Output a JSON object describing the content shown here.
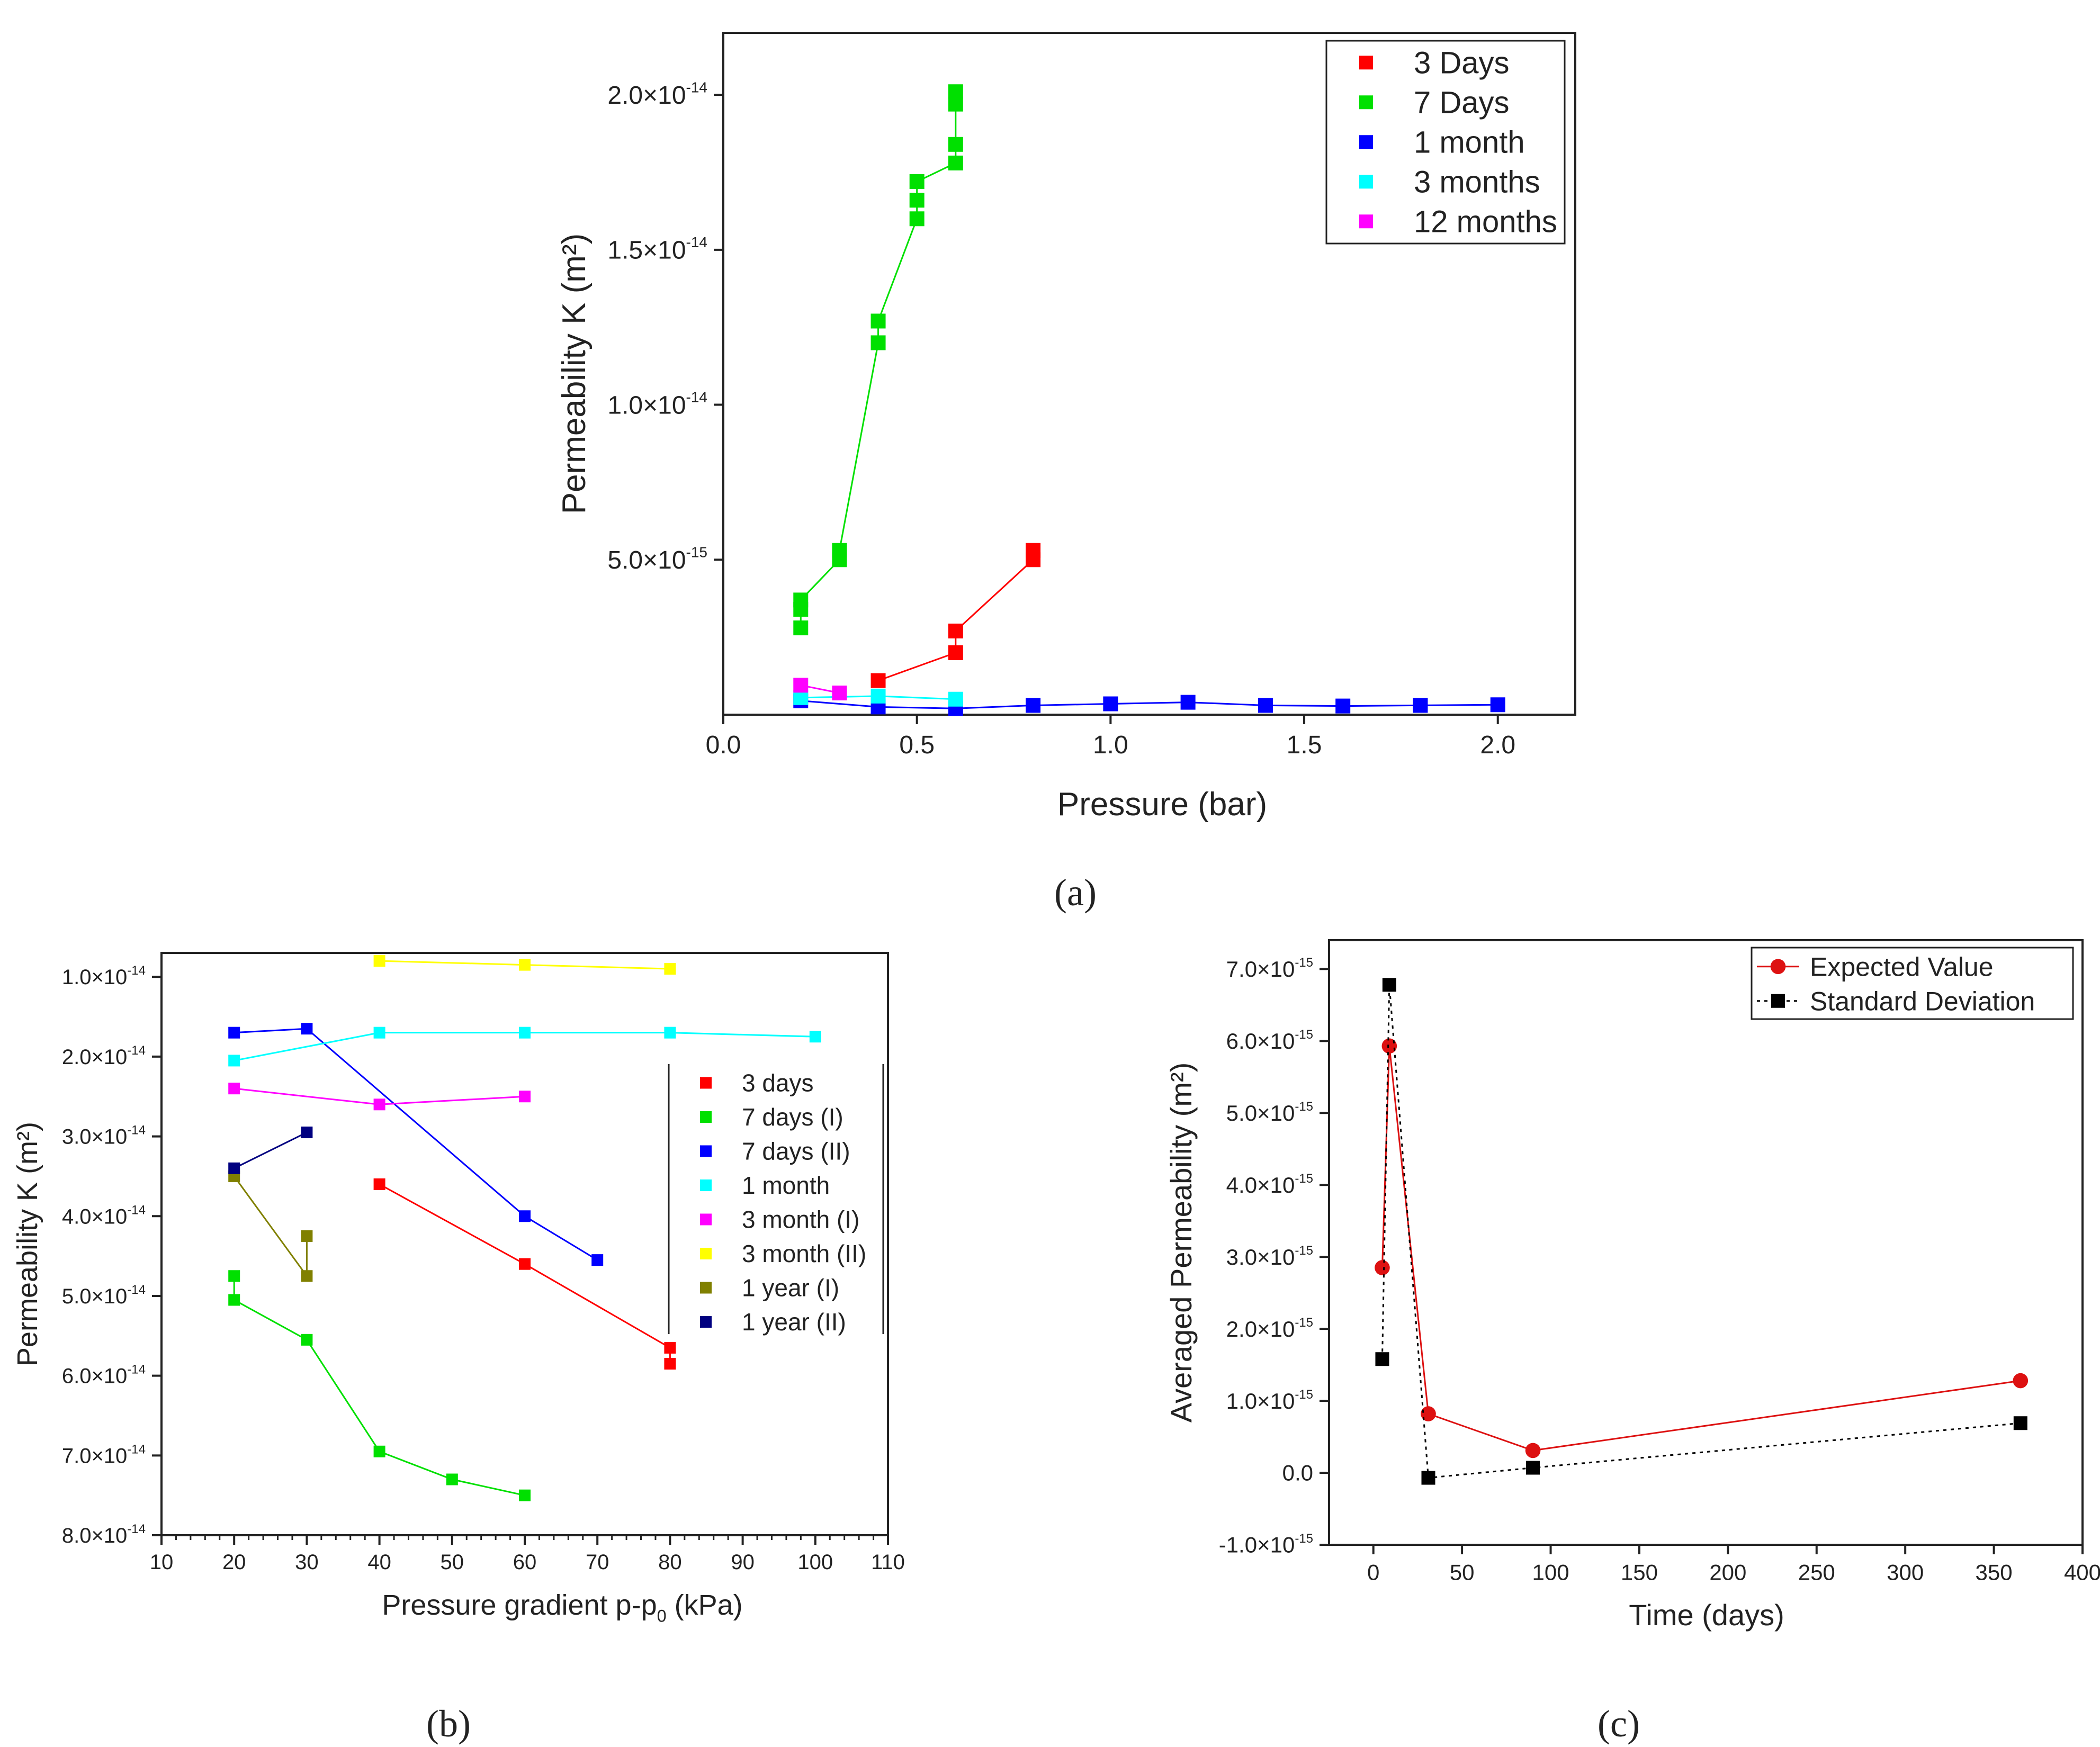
{
  "chart_data": [
    {
      "id": "a",
      "panel_label": "(a)",
      "type": "scatter",
      "xlabel": "Pressure (bar)",
      "ylabel": "Permeability K (m²)",
      "xlim": [
        0,
        2.2
      ],
      "ylim": [
        0,
        2.2e-14
      ],
      "x_ticks": [
        0,
        0.5,
        1.0,
        1.5,
        2.0
      ],
      "x_tick_labels": [
        "0.0",
        "0.5",
        "1.0",
        "1.5",
        "2.0"
      ],
      "y_ticks": [
        5e-15,
        1e-14,
        1.5e-14,
        2e-14
      ],
      "y_tick_mantissas": [
        "5.0×10",
        "1.0×10",
        "1.5×10",
        "2.0×10"
      ],
      "y_tick_exponents": [
        "-15",
        "-14",
        "-14",
        "-14"
      ],
      "legend_position": "top-right",
      "series": [
        {
          "name": "3 Days",
          "color": "#ff0000",
          "line": "solid",
          "x": [
            0.4,
            0.6,
            0.6,
            0.8,
            0.8
          ],
          "y": [
            1.1e-15,
            2e-15,
            2.7e-15,
            5e-15,
            5.3e-15
          ]
        },
        {
          "name": "7 Days",
          "color": "#00e000",
          "line": "solid",
          "x": [
            0.2,
            0.2,
            0.2,
            0.3,
            0.3,
            0.4,
            0.4,
            0.5,
            0.5,
            0.5,
            0.6,
            0.6,
            0.6,
            0.6
          ],
          "y": [
            2.8e-15,
            3.4e-15,
            3.7e-15,
            5e-15,
            5.3e-15,
            1.2e-14,
            1.27e-14,
            1.6e-14,
            1.66e-14,
            1.72e-14,
            1.78e-14,
            1.84e-14,
            1.97e-14,
            2.01e-14
          ]
        },
        {
          "name": "1 month",
          "color": "#0000ff",
          "line": "solid",
          "x": [
            0.2,
            0.4,
            0.6,
            0.8,
            1.0,
            1.2,
            1.4,
            1.6,
            1.8,
            2.0
          ],
          "y": [
            4.5e-16,
            2.5e-16,
            2e-16,
            3e-16,
            3.5e-16,
            4e-16,
            3e-16,
            2.8e-16,
            3e-16,
            3.2e-16
          ]
        },
        {
          "name": "3 months",
          "color": "#00ffff",
          "line": "solid",
          "x": [
            0.2,
            0.4,
            0.6
          ],
          "y": [
            5.5e-16,
            6e-16,
            5e-16
          ]
        },
        {
          "name": "12 months",
          "color": "#ff00ff",
          "line": "solid",
          "x": [
            0.2,
            0.3
          ],
          "y": [
            9.5e-16,
            7e-16
          ]
        }
      ]
    },
    {
      "id": "b",
      "panel_label": "(b)",
      "type": "scatter",
      "xlabel_main": "Pressure gradient p-p",
      "xlabel_sub": "0",
      "xlabel_tail": " (kPa)",
      "ylabel": "Permeability K (m²)",
      "y_inverted": true,
      "xlim": [
        10,
        110
      ],
      "ylim": [
        8e-14,
        7e-15
      ],
      "x_ticks": [
        10,
        20,
        30,
        40,
        50,
        60,
        70,
        80,
        90,
        100,
        110
      ],
      "x_tick_labels": [
        "10",
        "20",
        "30",
        "40",
        "50",
        "60",
        "70",
        "80",
        "90",
        "100",
        "110"
      ],
      "y_ticks": [
        1e-14,
        2e-14,
        3e-14,
        4e-14,
        5e-14,
        6e-14,
        7e-14,
        8e-14
      ],
      "y_tick_mantissas": [
        "1.0×10",
        "2.0×10",
        "3.0×10",
        "4.0×10",
        "5.0×10",
        "6.0×10",
        "7.0×10",
        "8.0×10"
      ],
      "y_tick_exponents": [
        "-14",
        "-14",
        "-14",
        "-14",
        "-14",
        "-14",
        "-14",
        "-14"
      ],
      "legend_position": "center-right",
      "series": [
        {
          "name": "3 days",
          "color": "#ff0000",
          "x": [
            40,
            60,
            80,
            80
          ],
          "y": [
            3.6e-14,
            4.6e-14,
            5.65e-14,
            5.85e-14
          ]
        },
        {
          "name": "7 days (I)",
          "color": "#00e000",
          "x": [
            20,
            20,
            30,
            40,
            50,
            60
          ],
          "y": [
            4.75e-14,
            5.05e-14,
            5.55e-14,
            6.95e-14,
            7.3e-14,
            7.5e-14
          ]
        },
        {
          "name": "7 days (II)",
          "color": "#0000ff",
          "x": [
            20,
            30,
            60,
            70
          ],
          "y": [
            1.7e-14,
            1.65e-14,
            4e-14,
            4.55e-14
          ]
        },
        {
          "name": "1 month",
          "color": "#00ffff",
          "x": [
            20,
            40,
            60,
            80,
            100
          ],
          "y": [
            2.05e-14,
            1.7e-14,
            1.7e-14,
            1.7e-14,
            1.75e-14
          ]
        },
        {
          "name": "3 month (I)",
          "color": "#ff00ff",
          "x": [
            20,
            40,
            60
          ],
          "y": [
            2.4e-14,
            2.6e-14,
            2.5e-14
          ]
        },
        {
          "name": "3 month (II)",
          "color": "#ffff00",
          "x": [
            40,
            60,
            80
          ],
          "y": [
            8e-15,
            8.5e-15,
            9e-15
          ]
        },
        {
          "name": "1 year (I)",
          "color": "#808000",
          "x": [
            20,
            30,
            30
          ],
          "y": [
            3.5e-14,
            4.75e-14,
            4.25e-14
          ]
        },
        {
          "name": "1 year (II)",
          "color": "#000080",
          "x": [
            20,
            30
          ],
          "y": [
            3.4e-14,
            2.95e-14
          ]
        }
      ]
    },
    {
      "id": "c",
      "panel_label": "(c)",
      "type": "line",
      "xlabel": "Time (days)",
      "ylabel": "Averaged Permeability (m²)",
      "xlim": [
        -25,
        400
      ],
      "ylim": [
        -1e-15,
        7.4e-15
      ],
      "x_ticks": [
        0,
        50,
        100,
        150,
        200,
        250,
        300,
        350,
        400
      ],
      "x_tick_labels": [
        "0",
        "50",
        "100",
        "150",
        "200",
        "250",
        "300",
        "350",
        "400"
      ],
      "y_ticks": [
        -1e-15,
        0,
        1e-15,
        2e-15,
        3e-15,
        4e-15,
        5e-15,
        6e-15,
        7e-15
      ],
      "y_tick_mantissas": [
        "-1.0×10",
        "0.0",
        "1.0×10",
        "2.0×10",
        "3.0×10",
        "4.0×10",
        "5.0×10",
        "6.0×10",
        "7.0×10"
      ],
      "y_tick_exponents": [
        "-15",
        "",
        "-15",
        "-15",
        "-15",
        "-15",
        "-15",
        "-15",
        "-15"
      ],
      "legend_position": "top-right",
      "series": [
        {
          "name": "Expected Value",
          "color": "#dd1111",
          "marker": "circle",
          "line": "solid",
          "x": [
            5,
            9,
            31,
            90,
            365
          ],
          "y": [
            2.85e-15,
            5.93e-15,
            8.2e-16,
            3.1e-16,
            1.28e-15
          ]
        },
        {
          "name": "Standard Deviation",
          "color": "#000000",
          "marker": "square",
          "line": "dotted",
          "x": [
            5,
            9,
            31,
            90,
            365
          ],
          "y": [
            1.58e-15,
            6.78e-15,
            -7e-17,
            7e-17,
            6.9e-16
          ]
        }
      ]
    }
  ]
}
